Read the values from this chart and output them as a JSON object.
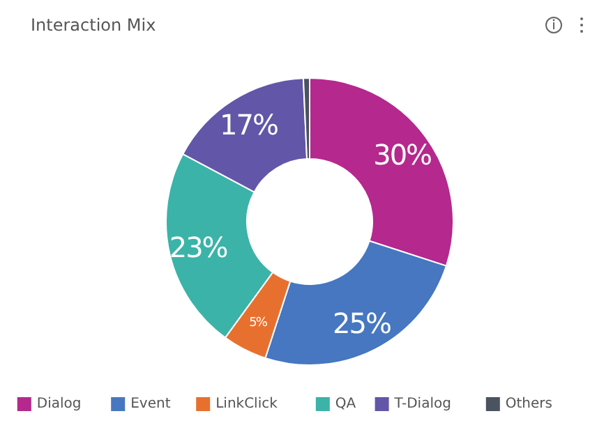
{
  "chart_data": {
    "type": "donut",
    "title": "Interaction Mix",
    "categories": [
      "Dialog",
      "Event",
      "LinkClick",
      "QA",
      "T-Dialog",
      "Others"
    ],
    "values": [
      30,
      25,
      5,
      22.8,
      16.5,
      0.7
    ],
    "colors": [
      "#b5288e",
      "#4677c0",
      "#e8702f",
      "#3bb3a8",
      "#6256a8",
      "#4b5260"
    ],
    "value_labels": [
      "30%",
      "25%",
      "5%",
      "23%",
      "17%",
      null
    ],
    "legend": "bottom"
  }
}
